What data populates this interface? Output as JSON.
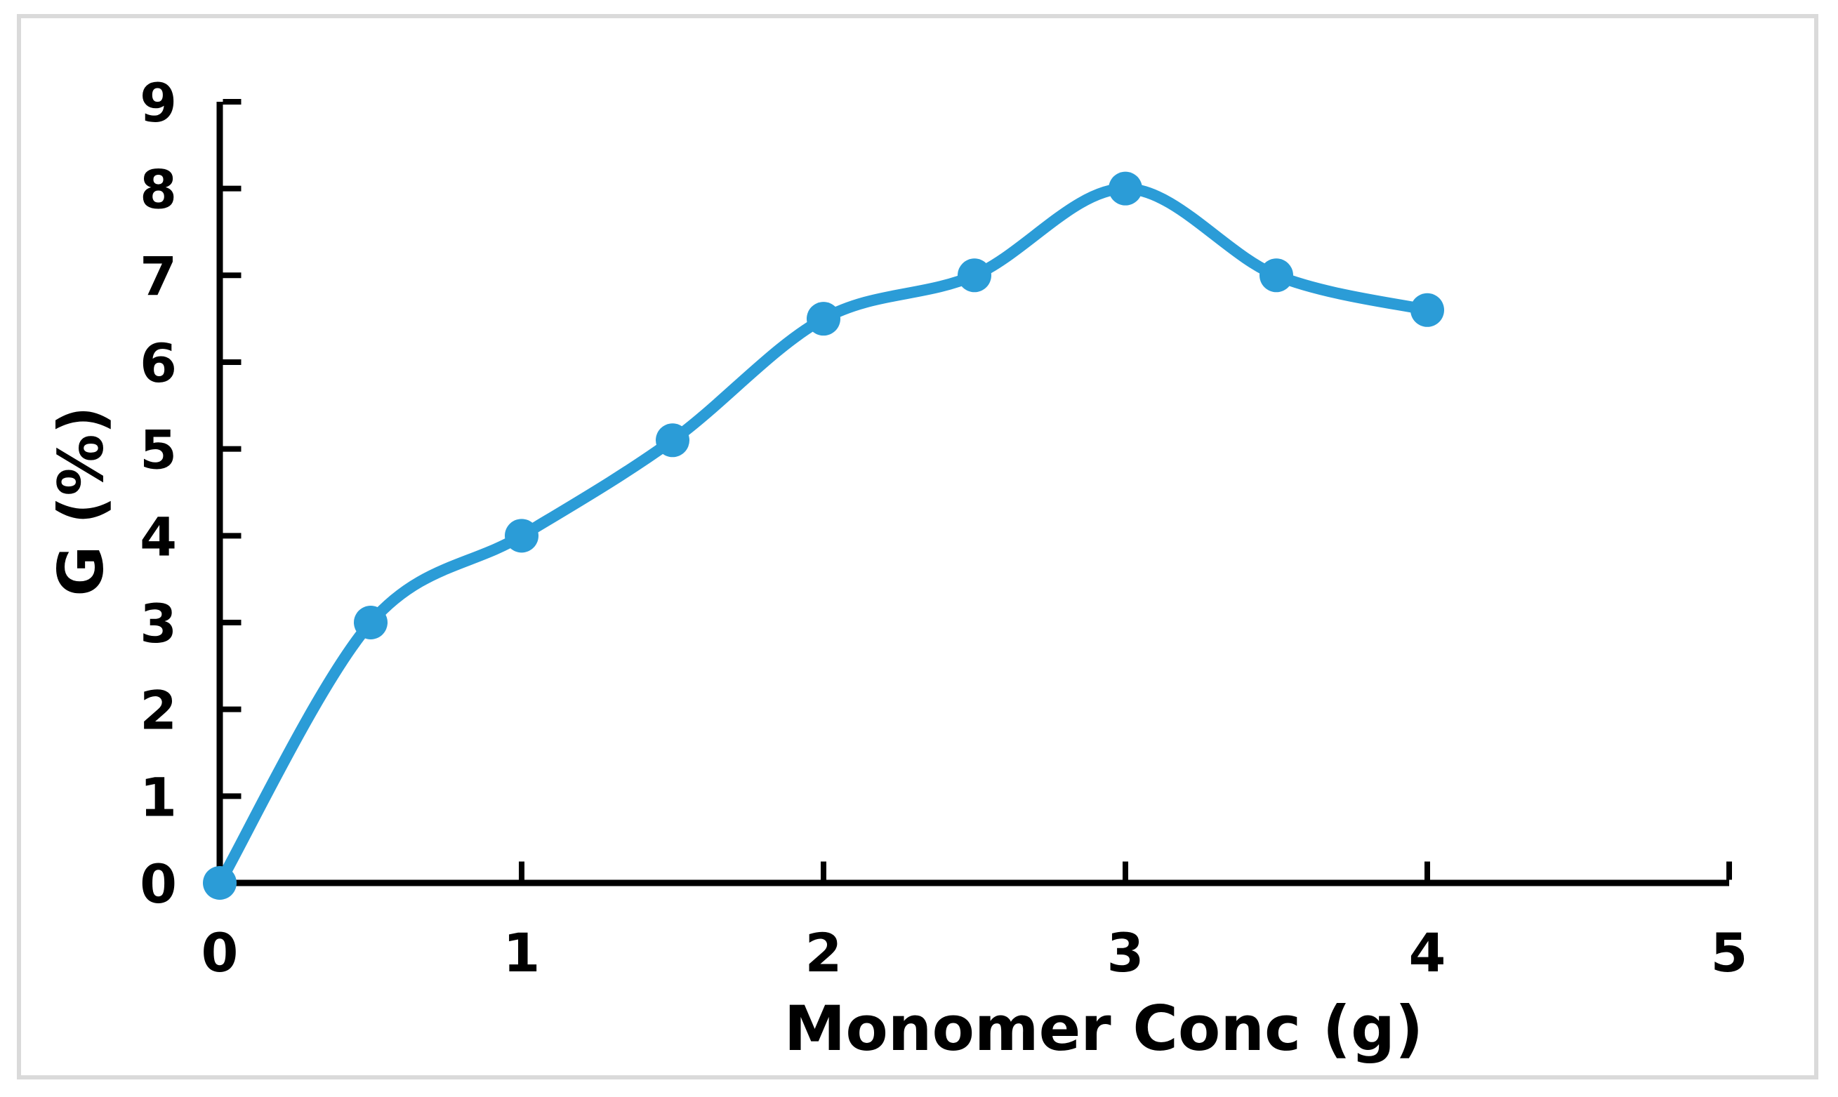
{
  "figure": {
    "background": "#FFFFFF",
    "border_color": "#DADADA"
  },
  "chart_data": {
    "type": "line",
    "title": "",
    "xlabel": "Monomer Conc (g)",
    "ylabel": "G (%)",
    "series": [
      {
        "name": "G (%)",
        "x": [
          0,
          0.5,
          1,
          1.5,
          2,
          2.5,
          3,
          3.5,
          4
        ],
        "y": [
          0,
          3,
          4,
          5.1,
          6.5,
          7,
          8,
          7,
          6.6
        ]
      }
    ],
    "xlim": [
      0,
      5
    ],
    "ylim": [
      0,
      9
    ],
    "x_ticks": [
      0,
      1,
      2,
      3,
      4,
      5
    ],
    "y_ticks": [
      0,
      1,
      2,
      3,
      4,
      5,
      6,
      7,
      8,
      9
    ],
    "grid": false,
    "legend": false,
    "smooth": true,
    "marker": "circle",
    "line_color": "#2B9CD7",
    "marker_color": "#2B9CD7",
    "axis_color": "#000000",
    "tick_style": "inside"
  }
}
